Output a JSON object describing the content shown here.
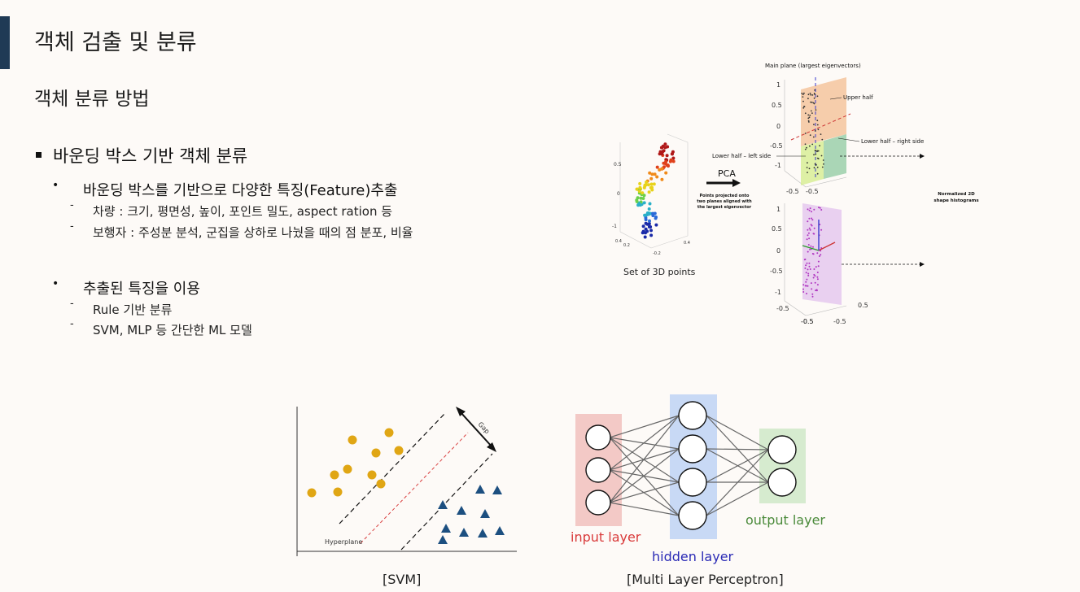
{
  "page": {
    "title": "객체 검출 및 분류",
    "subtitle": "객체 분류 방법"
  },
  "section": {
    "heading": "바운딩 박스 기반 객체 분류",
    "items": [
      {
        "text": "바운딩 박스를 기반으로 다양한 특징(Feature)추출",
        "subitems": [
          "차량 : 크기, 평면성, 높이, 포인트 밀도, aspect ration 등",
          "보행자 : 주성분 분석, 군집을 상하로 나눴을 때의 점 분포, 비율"
        ]
      },
      {
        "text": "추출된 특징을 이용",
        "subitems": [
          "Rule 기반 분류",
          "SVM, MLP 등 간단한 ML 모델"
        ]
      }
    ]
  },
  "figure_pca": {
    "main_plane_title": "Main plane (largest eigenvectors)",
    "upper_half": "Upper half",
    "lower_half_right": "Lower half – right side",
    "lower_half_left": "Lower half – left side",
    "pca_label": "PCA",
    "projection_note": "Points projected onto two planes aligned with the largest eigenvector",
    "set_caption": "Set of 3D points",
    "hist_caption": "Normalized 2D shape histograms",
    "small_ticks": [
      "0.4",
      "0.2",
      "0",
      "-0.2",
      "-0.4"
    ],
    "axis_ticks": [
      "1",
      "0.5",
      "0",
      "-0.5",
      "-1"
    ],
    "bottom_ticks": [
      "-0.5",
      "-0.5",
      "0.5"
    ]
  },
  "figure_svm": {
    "caption": "[SVM]",
    "hyperplane_label": "Hyperplane",
    "gap_label": "Gap"
  },
  "figure_mlp": {
    "caption": "[Multi Layer Perceptron]",
    "input_label": "input layer",
    "hidden_label": "hidden layer",
    "output_label": "output layer"
  },
  "colors": {
    "accent": "#1f3a55",
    "input_color": "#d93a3a",
    "hidden_color": "#2a2ab5",
    "output_color": "#4a8a3a"
  }
}
